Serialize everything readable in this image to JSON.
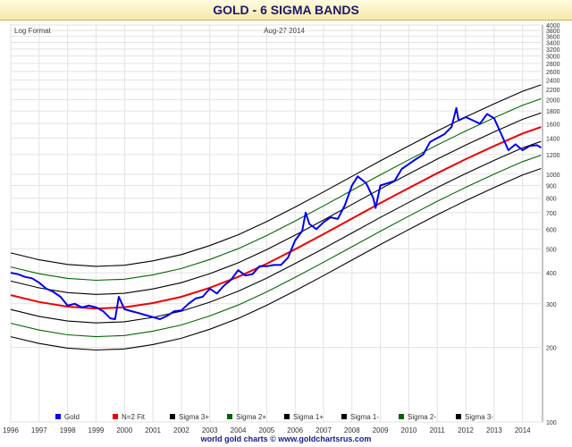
{
  "page_title": "GOLD - 6 SIGMA BANDS",
  "format_label": "Log Format",
  "date_label": "Aug-27 2014",
  "footer": "world gold charts © www.goldchartsrus.com",
  "colors": {
    "gold": "#0000ee",
    "fit": "#ee0000",
    "sigma3": "#000000",
    "sigma2": "#006600",
    "sigma1": "#000000"
  },
  "chart_data": {
    "type": "line",
    "title": "GOLD - 6 SIGMA BANDS",
    "y_scale": "log",
    "ylim": [
      100,
      4000
    ],
    "xlim": [
      1996,
      2014.7
    ],
    "y_ticks": [
      100,
      200,
      300,
      400,
      500,
      600,
      700,
      800,
      900,
      1000,
      1200,
      1400,
      1600,
      1800,
      2000,
      2200,
      2400,
      2600,
      2800,
      3000,
      3200,
      3400,
      3600,
      3800,
      4000
    ],
    "x_ticks": [
      "1996",
      "1997",
      "1998",
      "1999",
      "2000",
      "2001",
      "2002",
      "2003",
      "2004",
      "2005",
      "2006",
      "2007",
      "2008",
      "2009",
      "2010",
      "2011",
      "2012",
      "2013",
      "2014"
    ],
    "grid": true,
    "legend_position": "bottom",
    "legend": [
      {
        "name": "Gold",
        "color": "#0000ee"
      },
      {
        "name": "N=2 Fit",
        "color": "#ee0000"
      },
      {
        "name": "Sigma 3+",
        "color": "#000000"
      },
      {
        "name": "Sigma 2+",
        "color": "#006600"
      },
      {
        "name": "Sigma 1+",
        "color": "#000000"
      },
      {
        "name": "Sigma 1-",
        "color": "#000000"
      },
      {
        "name": "Sigma 2-",
        "color": "#006600"
      },
      {
        "name": "Sigma 3-",
        "color": "#000000"
      }
    ],
    "fit_curve": {
      "x": [
        1996,
        1997,
        1998,
        1999,
        2000,
        2001,
        2002,
        2003,
        2004,
        2005,
        2006,
        2007,
        2008,
        2009,
        2010,
        2011,
        2012,
        2013,
        2014,
        2014.65
      ],
      "y": [
        325,
        305,
        292,
        287,
        290,
        302,
        320,
        348,
        385,
        435,
        498,
        573,
        662,
        765,
        880,
        1010,
        1150,
        1300,
        1460,
        1550
      ]
    },
    "band_multipliers": {
      "sigma3_plus": 1.48,
      "sigma2_plus": 1.3,
      "sigma1_plus": 1.14,
      "sigma1_minus": 0.875,
      "sigma2_minus": 0.77,
      "sigma3_minus": 0.68
    },
    "series": [
      {
        "name": "Gold",
        "x": [
          1996,
          1996.25,
          1996.5,
          1996.75,
          1997,
          1997.25,
          1997.5,
          1997.75,
          1998,
          1998.25,
          1998.5,
          1998.75,
          1999,
          1999.25,
          1999.5,
          1999.67,
          1999.8,
          2000,
          2000.25,
          2000.5,
          2000.75,
          2001,
          2001.25,
          2001.5,
          2001.75,
          2002,
          2002.25,
          2002.5,
          2002.75,
          2003,
          2003.25,
          2003.5,
          2003.75,
          2004,
          2004.25,
          2004.5,
          2004.75,
          2005,
          2005.25,
          2005.5,
          2005.75,
          2006,
          2006.25,
          2006.37,
          2006.5,
          2006.75,
          2007,
          2007.25,
          2007.5,
          2007.75,
          2008,
          2008.2,
          2008.5,
          2008.75,
          2008.83,
          2009,
          2009.25,
          2009.5,
          2009.75,
          2010,
          2010.25,
          2010.5,
          2010.75,
          2011,
          2011.25,
          2011.5,
          2011.67,
          2011.75,
          2012,
          2012.25,
          2012.5,
          2012.75,
          2013,
          2013.25,
          2013.5,
          2013.75,
          2014,
          2014.25,
          2014.5,
          2014.65
        ],
        "y": [
          400,
          395,
          385,
          380,
          365,
          345,
          335,
          320,
          295,
          300,
          290,
          295,
          290,
          280,
          262,
          260,
          320,
          285,
          280,
          275,
          270,
          265,
          260,
          268,
          280,
          282,
          300,
          315,
          320,
          345,
          330,
          355,
          375,
          410,
          390,
          395,
          425,
          425,
          430,
          430,
          460,
          540,
          590,
          700,
          630,
          600,
          640,
          670,
          660,
          750,
          900,
          980,
          920,
          800,
          730,
          900,
          920,
          940,
          1050,
          1100,
          1150,
          1200,
          1350,
          1400,
          1450,
          1550,
          1850,
          1650,
          1700,
          1650,
          1600,
          1750,
          1680,
          1450,
          1250,
          1320,
          1250,
          1300,
          1310,
          1280
        ]
      }
    ]
  }
}
